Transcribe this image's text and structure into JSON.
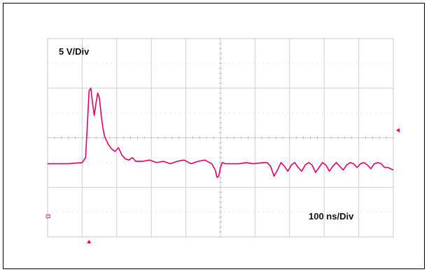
{
  "chart_data": {
    "type": "line",
    "title": "",
    "annotations": {
      "vertical_scale": "5 V/Div",
      "time_scale": "100 ns/Div",
      "channel_marker": "Ω"
    },
    "xlim": [
      0,
      1000
    ],
    "ylim": [
      -4,
      4
    ],
    "x_unit": "ns",
    "y_divisions": 8,
    "x_divisions": 10,
    "grid": true,
    "trigger_markers": {
      "time_ns": 120,
      "level_div": 0.3
    },
    "series": [
      {
        "color": "#e0006a",
        "x": [
          0,
          60,
          100,
          110,
          115,
          120,
          125,
          130,
          135,
          140,
          145,
          150,
          155,
          160,
          165,
          175,
          185,
          195,
          205,
          215,
          225,
          235,
          245,
          255,
          275,
          295,
          315,
          335,
          355,
          375,
          395,
          415,
          435,
          455,
          475,
          485,
          490,
          495,
          500,
          505,
          515,
          535,
          555,
          575,
          595,
          625,
          635,
          645,
          655,
          665,
          675,
          685,
          695,
          705,
          715,
          725,
          735,
          745,
          755,
          765,
          775,
          785,
          795,
          805,
          815,
          825,
          835,
          845,
          855,
          865,
          875,
          885,
          895,
          905,
          915,
          925,
          935,
          945,
          955,
          965,
          975,
          985,
          1000
        ],
        "y": [
          -1.05,
          -1.05,
          -1.0,
          -0.8,
          0.5,
          1.9,
          2.0,
          1.4,
          0.9,
          1.4,
          1.8,
          1.6,
          0.9,
          0.4,
          0.05,
          -0.25,
          -0.45,
          -0.55,
          -0.4,
          -0.7,
          -0.85,
          -0.9,
          -0.8,
          -0.95,
          -0.95,
          -0.9,
          -1.0,
          -0.95,
          -1.05,
          -0.95,
          -0.9,
          -1.05,
          -0.95,
          -0.9,
          -1.05,
          -1.3,
          -1.6,
          -1.55,
          -1.2,
          -1.0,
          -1.05,
          -1.05,
          -1.05,
          -1.0,
          -1.05,
          -1.0,
          -1.0,
          -1.15,
          -1.55,
          -1.3,
          -1.0,
          -1.15,
          -1.35,
          -1.1,
          -1.0,
          -1.2,
          -1.35,
          -1.1,
          -1.0,
          -1.1,
          -1.4,
          -1.2,
          -1.0,
          -1.1,
          -1.35,
          -1.15,
          -1.0,
          -1.15,
          -1.3,
          -1.1,
          -1.0,
          -1.05,
          -1.2,
          -1.05,
          -1.0,
          -1.1,
          -1.25,
          -1.05,
          -1.0,
          -1.05,
          -1.2,
          -1.2,
          -1.3
        ]
      }
    ]
  }
}
